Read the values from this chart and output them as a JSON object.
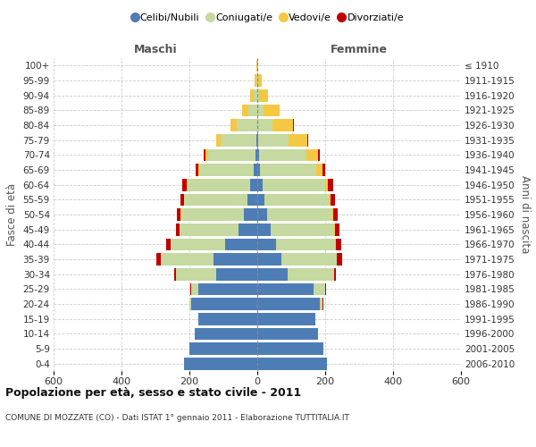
{
  "age_groups": [
    "0-4",
    "5-9",
    "10-14",
    "15-19",
    "20-24",
    "25-29",
    "30-34",
    "35-39",
    "40-44",
    "45-49",
    "50-54",
    "55-59",
    "60-64",
    "65-69",
    "70-74",
    "75-79",
    "80-84",
    "85-89",
    "90-94",
    "95-99",
    "100+"
  ],
  "birth_years": [
    "2006-2010",
    "2001-2005",
    "1996-2000",
    "1991-1995",
    "1986-1990",
    "1981-1985",
    "1976-1980",
    "1971-1975",
    "1966-1970",
    "1961-1965",
    "1956-1960",
    "1951-1955",
    "1946-1950",
    "1941-1945",
    "1936-1940",
    "1931-1935",
    "1926-1930",
    "1921-1925",
    "1916-1920",
    "1911-1915",
    "≤ 1910"
  ],
  "males": {
    "celibi": [
      215,
      200,
      185,
      175,
      195,
      175,
      120,
      130,
      95,
      55,
      40,
      30,
      20,
      10,
      5,
      3,
      1,
      1,
      0,
      0,
      0
    ],
    "coniugati": [
      0,
      0,
      0,
      0,
      5,
      20,
      120,
      155,
      160,
      175,
      185,
      185,
      185,
      160,
      140,
      105,
      60,
      25,
      10,
      3,
      1
    ],
    "vedovi": [
      0,
      0,
      0,
      0,
      0,
      0,
      0,
      0,
      0,
      0,
      2,
      2,
      3,
      4,
      8,
      12,
      18,
      18,
      10,
      4,
      1
    ],
    "divorziati": [
      0,
      0,
      0,
      0,
      0,
      2,
      4,
      12,
      14,
      10,
      10,
      10,
      12,
      7,
      4,
      2,
      1,
      0,
      0,
      0,
      0
    ]
  },
  "females": {
    "nubili": [
      205,
      195,
      180,
      170,
      185,
      165,
      90,
      70,
      55,
      40,
      28,
      20,
      15,
      8,
      5,
      2,
      1,
      1,
      0,
      0,
      0
    ],
    "coniugate": [
      0,
      0,
      0,
      0,
      8,
      35,
      135,
      165,
      175,
      185,
      190,
      190,
      185,
      165,
      140,
      90,
      45,
      18,
      6,
      2,
      0
    ],
    "vedove": [
      0,
      0,
      0,
      0,
      0,
      0,
      0,
      0,
      2,
      3,
      5,
      7,
      8,
      18,
      35,
      55,
      60,
      48,
      25,
      10,
      2
    ],
    "divorziate": [
      0,
      0,
      0,
      0,
      2,
      3,
      6,
      16,
      16,
      13,
      13,
      13,
      15,
      8,
      4,
      2,
      1,
      0,
      0,
      0,
      0
    ]
  },
  "colors": {
    "celibi": "#4e7db5",
    "coniugati": "#c5d9a0",
    "vedovi": "#f5c842",
    "divorziati": "#c00000"
  },
  "title": "Popolazione per età, sesso e stato civile - 2011",
  "subtitle": "COMUNE DI MOZZATE (CO) - Dati ISTAT 1° gennaio 2011 - Elaborazione TUTTITALIA.IT",
  "xlabel_left": "Maschi",
  "xlabel_right": "Femmine",
  "ylabel_left": "Fasce di età",
  "ylabel_right": "Anni di nascita",
  "xlim": 600,
  "legend_labels": [
    "Celibi/Nubili",
    "Coniugati/e",
    "Vedovi/e",
    "Divorziati/e"
  ],
  "background_color": "#ffffff",
  "grid_color": "#cccccc"
}
